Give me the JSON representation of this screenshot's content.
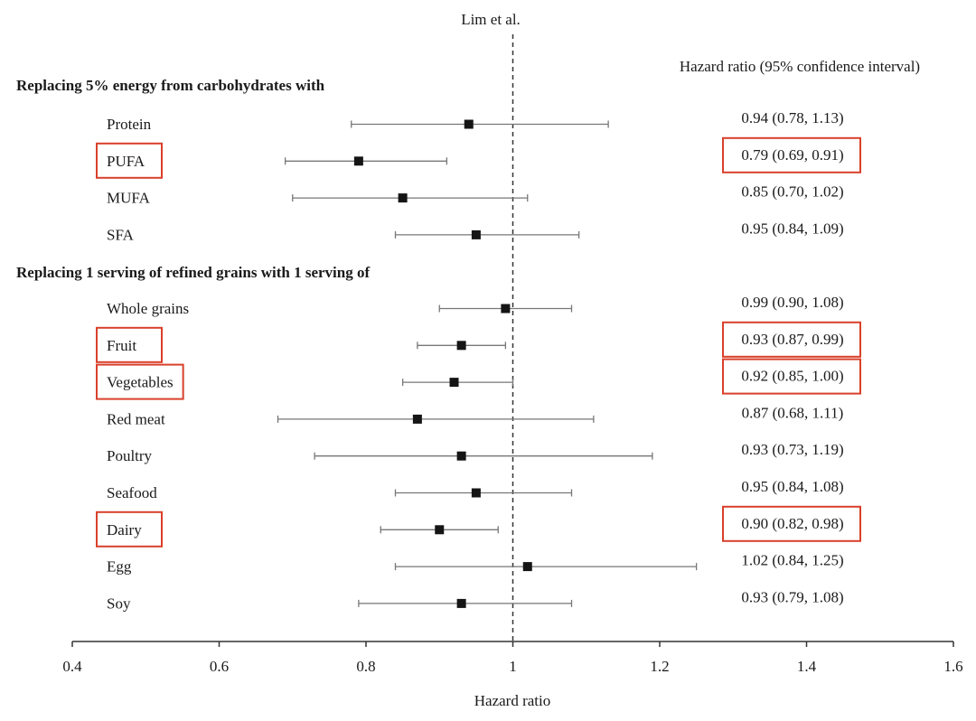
{
  "page": {
    "running_head": "Lim et al."
  },
  "chart_data": {
    "type": "forest",
    "title": "",
    "xlabel": "Hazard ratio",
    "ylabel": "",
    "xlim": [
      0.4,
      1.6
    ],
    "xticks": [
      0.4,
      0.6,
      0.8,
      1.0,
      1.2,
      1.4,
      1.6
    ],
    "xtick_labels": [
      "0.4",
      "0.6",
      "0.8",
      "1",
      "1.2",
      "1.4",
      "1.6"
    ],
    "reference_line": 1.0,
    "value_column_header": "Hazard ratio (95% confidence interval)",
    "highlight_color": "#d9402b",
    "sections": [
      {
        "title": "Replacing 5% energy from carbohydrates with",
        "rows": [
          {
            "label": "Protein",
            "hr": 0.94,
            "lo": 0.78,
            "hi": 1.13,
            "text": "0.94 (0.78, 1.13)",
            "highlighted": false
          },
          {
            "label": "PUFA",
            "hr": 0.79,
            "lo": 0.69,
            "hi": 0.91,
            "text": "0.79 (0.69, 0.91)",
            "highlighted": true
          },
          {
            "label": "MUFA",
            "hr": 0.85,
            "lo": 0.7,
            "hi": 1.02,
            "text": "0.85 (0.70, 1.02)",
            "highlighted": false
          },
          {
            "label": "SFA",
            "hr": 0.95,
            "lo": 0.84,
            "hi": 1.09,
            "text": "0.95 (0.84, 1.09)",
            "highlighted": false
          }
        ]
      },
      {
        "title": "Replacing 1 serving of refined grains with 1 serving of",
        "rows": [
          {
            "label": "Whole grains",
            "hr": 0.99,
            "lo": 0.9,
            "hi": 1.08,
            "text": "0.99 (0.90, 1.08)",
            "highlighted": false
          },
          {
            "label": "Fruit",
            "hr": 0.93,
            "lo": 0.87,
            "hi": 0.99,
            "text": "0.93 (0.87, 0.99)",
            "highlighted": true
          },
          {
            "label": "Vegetables",
            "hr": 0.92,
            "lo": 0.85,
            "hi": 1.0,
            "text": "0.92 (0.85, 1.00)",
            "highlighted": true
          },
          {
            "label": "Red meat",
            "hr": 0.87,
            "lo": 0.68,
            "hi": 1.11,
            "text": "0.87 (0.68, 1.11)",
            "highlighted": false
          },
          {
            "label": "Poultry",
            "hr": 0.93,
            "lo": 0.73,
            "hi": 1.19,
            "text": "0.93 (0.73, 1.19)",
            "highlighted": false
          },
          {
            "label": "Seafood",
            "hr": 0.95,
            "lo": 0.84,
            "hi": 1.08,
            "text": "0.95 (0.84, 1.08)",
            "highlighted": false
          },
          {
            "label": "Dairy",
            "hr": 0.9,
            "lo": 0.82,
            "hi": 0.98,
            "text": "0.90 (0.82, 0.98)",
            "highlighted": true
          },
          {
            "label": "Egg",
            "hr": 1.02,
            "lo": 0.84,
            "hi": 1.25,
            "text": "1.02 (0.84, 1.25)",
            "highlighted": false
          },
          {
            "label": "Soy",
            "hr": 0.93,
            "lo": 0.79,
            "hi": 1.08,
            "text": "0.93 (0.79, 1.08)",
            "highlighted": false
          }
        ]
      }
    ]
  }
}
